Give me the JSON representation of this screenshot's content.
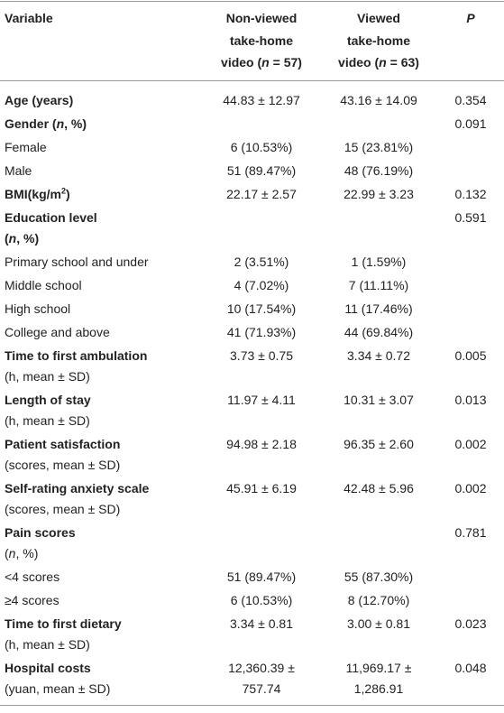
{
  "table": {
    "header": [
      [
        [
          {
            "t": "Variable",
            "s": "b"
          }
        ]
      ],
      [
        [
          {
            "t": "Non-viewed",
            "s": "b"
          }
        ],
        [
          {
            "t": "take-home",
            "s": "b"
          }
        ],
        [
          {
            "t": "video (",
            "s": "b"
          },
          {
            "t": "n",
            "s": "bi"
          },
          {
            "t": " = 57)",
            "s": "b"
          }
        ]
      ],
      [
        [
          {
            "t": "Viewed",
            "s": "b"
          }
        ],
        [
          {
            "t": "take-home",
            "s": "b"
          }
        ],
        [
          {
            "t": "video (",
            "s": "b"
          },
          {
            "t": "n",
            "s": "bi"
          },
          {
            "t": " = 63)",
            "s": "b"
          }
        ]
      ],
      [
        [
          {
            "t": "P",
            "s": "bi"
          }
        ]
      ]
    ],
    "rows": [
      {
        "label": [
          [
            {
              "t": "Age (years)",
              "s": "b"
            }
          ]
        ],
        "values": [
          "44.83 ± 12.97",
          "43.16 ± 14.09",
          "0.354"
        ]
      },
      {
        "label": [
          [
            {
              "t": "Gender (",
              "s": "b"
            },
            {
              "t": "n",
              "s": "bi"
            },
            {
              "t": ", %)",
              "s": "b"
            }
          ]
        ],
        "values": [
          null,
          null,
          "0.091"
        ]
      },
      {
        "label": [
          [
            {
              "t": "Female",
              "s": "r"
            }
          ]
        ],
        "values": [
          "6 (10.53%)",
          "15 (23.81%)",
          null
        ]
      },
      {
        "label": [
          [
            {
              "t": "Male",
              "s": "r"
            }
          ]
        ],
        "values": [
          "51 (89.47%)",
          "48 (76.19%)",
          null
        ]
      },
      {
        "label": [
          [
            {
              "t": "BMI(kg/m",
              "s": "b"
            },
            {
              "t": "2",
              "s": "bsup"
            },
            {
              "t": ")",
              "s": "b"
            }
          ]
        ],
        "values": [
          "22.17 ± 2.57",
          "22.99 ± 3.23",
          "0.132"
        ]
      },
      {
        "label": [
          [
            {
              "t": "Education level",
              "s": "b"
            }
          ],
          [
            {
              "t": "(",
              "s": "b"
            },
            {
              "t": "n",
              "s": "bi"
            },
            {
              "t": ", %)",
              "s": "b"
            }
          ]
        ],
        "values": [
          null,
          null,
          "0.591"
        ]
      },
      {
        "label": [
          [
            {
              "t": "Primary school and under",
              "s": "r"
            }
          ]
        ],
        "values": [
          "2 (3.51%)",
          "1 (1.59%)",
          null
        ]
      },
      {
        "label": [
          [
            {
              "t": "Middle school",
              "s": "r"
            }
          ]
        ],
        "values": [
          "4 (7.02%)",
          "7 (11.11%)",
          null
        ]
      },
      {
        "label": [
          [
            {
              "t": "High school",
              "s": "r"
            }
          ]
        ],
        "values": [
          "10 (17.54%)",
          "11 (17.46%)",
          null
        ]
      },
      {
        "label": [
          [
            {
              "t": "College and above",
              "s": "r"
            }
          ]
        ],
        "values": [
          "41 (71.93%)",
          "44 (69.84%)",
          null
        ]
      },
      {
        "label": [
          [
            {
              "t": "Time to first ambulation",
              "s": "b"
            }
          ],
          [
            {
              "t": "(h, mean ± SD)",
              "s": "r"
            }
          ]
        ],
        "values": [
          "3.73 ± 0.75",
          "3.34 ± 0.72",
          "0.005"
        ]
      },
      {
        "label": [
          [
            {
              "t": "Length of stay",
              "s": "b"
            }
          ],
          [
            {
              "t": "(h, mean ± SD)",
              "s": "r"
            }
          ]
        ],
        "values": [
          "11.97 ± 4.11",
          "10.31 ± 3.07",
          "0.013"
        ]
      },
      {
        "label": [
          [
            {
              "t": "Patient satisfaction",
              "s": "b"
            }
          ],
          [
            {
              "t": "(scores, mean ± SD)",
              "s": "r"
            }
          ]
        ],
        "values": [
          "94.98 ± 2.18",
          "96.35 ± 2.60",
          "0.002"
        ]
      },
      {
        "label": [
          [
            {
              "t": "Self-rating anxiety scale",
              "s": "b"
            }
          ],
          [
            {
              "t": "(scores, mean ± SD)",
              "s": "r"
            }
          ]
        ],
        "values": [
          "45.91 ± 6.19",
          "42.48 ± 5.96",
          "0.002"
        ]
      },
      {
        "label": [
          [
            {
              "t": "Pain scores",
              "s": "b"
            }
          ],
          [
            {
              "t": "(",
              "s": "r"
            },
            {
              "t": "n",
              "s": "i"
            },
            {
              "t": ", %)",
              "s": "r"
            }
          ]
        ],
        "values": [
          null,
          null,
          "0.781"
        ]
      },
      {
        "label": [
          [
            {
              "t": "<4 scores",
              "s": "r"
            }
          ]
        ],
        "values": [
          "51 (89.47%)",
          "55 (87.30%)",
          null
        ]
      },
      {
        "label": [
          [
            {
              "t": "≥4 scores",
              "s": "r"
            }
          ]
        ],
        "values": [
          "6 (10.53%)",
          "8 (12.70%)",
          null
        ]
      },
      {
        "label": [
          [
            {
              "t": "Time to first dietary",
              "s": "b"
            }
          ],
          [
            {
              "t": "(h, mean ± SD)",
              "s": "r"
            }
          ]
        ],
        "values": [
          "3.34 ± 0.81",
          "3.00 ± 0.81",
          "0.023"
        ]
      },
      {
        "label": [
          [
            {
              "t": "Hospital costs",
              "s": "b"
            }
          ],
          [
            {
              "t": "(yuan, mean ± SD)",
              "s": "r"
            }
          ]
        ],
        "values": [
          [
            "12,360.39 ±",
            "757.74"
          ],
          [
            "11,969.17 ±",
            "1,286.91"
          ],
          "0.048"
        ]
      }
    ]
  }
}
